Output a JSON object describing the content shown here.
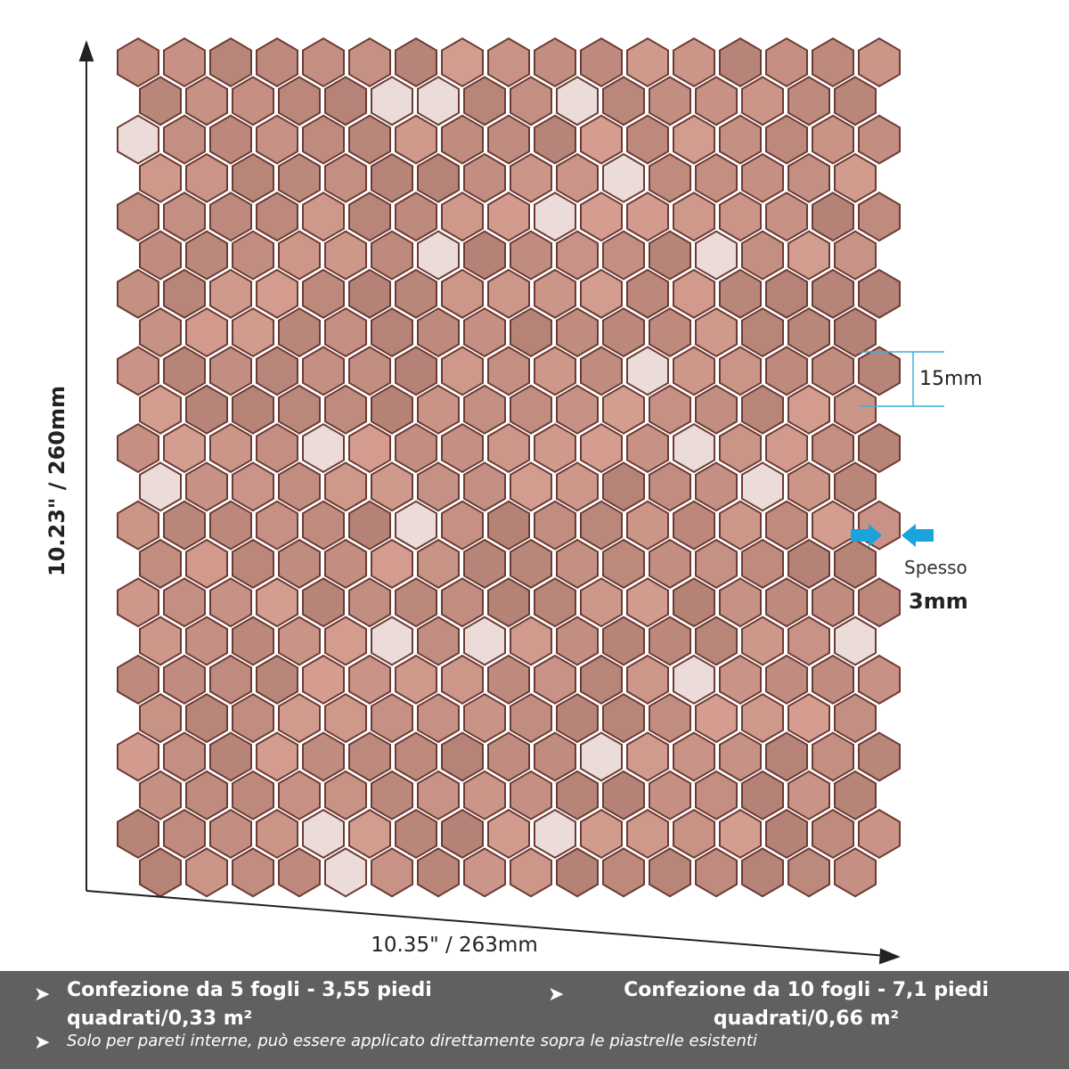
{
  "dimensions": {
    "height_label": "10.23\" / 260mm",
    "width_label": "10.35\" / 263mm",
    "tile_size": "15mm",
    "thickness_label": "Spesso",
    "thickness_value": "3mm"
  },
  "footer": {
    "items": [
      "Confezione da 5 fogli - 3,55 piedi quadrati/0,33 m²",
      "Confezione da 10 fogli - 7,1 piedi quadrati/0,66 m²"
    ],
    "note": "Solo per pareti interne, può essere applicato direttamente sopra le piastrelle esistenti"
  }
}
